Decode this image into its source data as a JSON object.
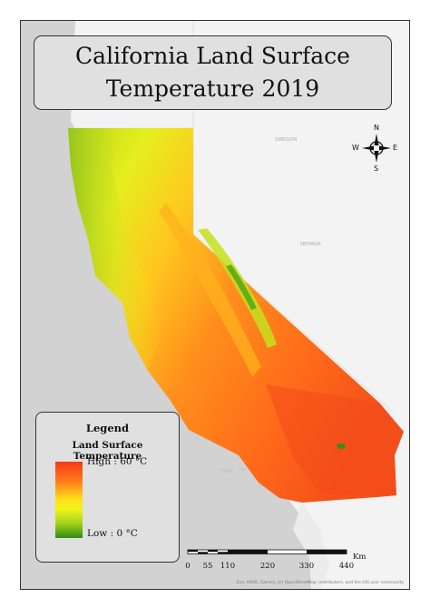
{
  "map": {
    "title": "California Land Surface Temperature 2019",
    "legend": {
      "heading": "Legend",
      "variable": "Land Surface Temperature",
      "high_label": "High : 60 °C",
      "low_label": "Low : 0 °C",
      "colors": {
        "high": "#f23a1a",
        "mid": "#ffe11a",
        "low": "#2e8b14"
      }
    },
    "scale_bar": {
      "ticks": [
        "0",
        "55",
        "110",
        "220",
        "330",
        "440"
      ],
      "unit": "Km"
    },
    "compass": {
      "n": "N",
      "s": "S",
      "e": "E",
      "w": "W"
    },
    "attribution": "Esri, HERE, Garmin, (c) OpenStreetMap contributors, and the GIS user community",
    "basemap_labels": [
      "OREGON",
      "NEVADA"
    ],
    "colors": {
      "ocean": "#d2d2d2",
      "land": "#f2f2f2",
      "frame": "#333333"
    }
  }
}
